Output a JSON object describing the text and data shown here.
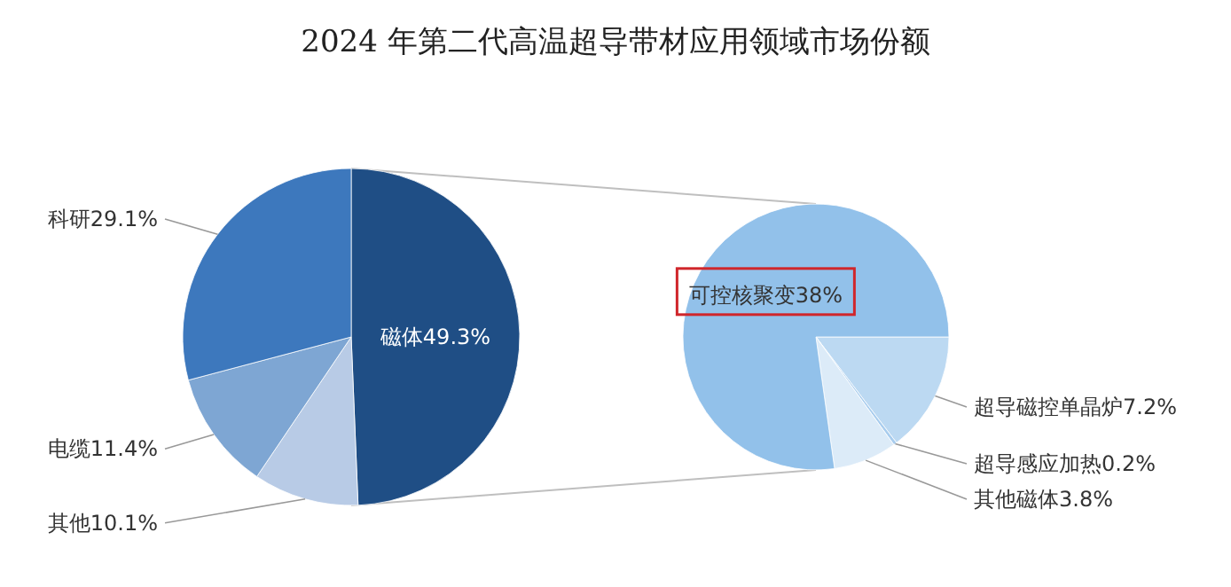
{
  "chart_data": [
    {
      "type": "pie",
      "title": "2024 年第二代高温超导带材应用领域市场份额",
      "categories": [
        "磁体",
        "其他",
        "电缆",
        "科研"
      ],
      "values": [
        49.3,
        10.1,
        11.4,
        29.1
      ],
      "value_labels": [
        "49.3%",
        "10.1%",
        "11.4%",
        "29.1%"
      ],
      "colors": [
        "#1f4e85",
        "#b8cbe6",
        "#7ea6d3",
        "#3d78bd"
      ]
    },
    {
      "type": "pie",
      "categories": [
        "超导磁控单晶炉",
        "超导感应加热",
        "其他磁体",
        "可控核聚变"
      ],
      "values": [
        7.2,
        0.2,
        3.8,
        38
      ],
      "value_labels": [
        "7.2%",
        "0.2%",
        "3.8%",
        "38%"
      ],
      "colors": [
        "#bcd9f2",
        "#a9cdee",
        "#dcebf8",
        "#92c1ea"
      ]
    }
  ]
}
